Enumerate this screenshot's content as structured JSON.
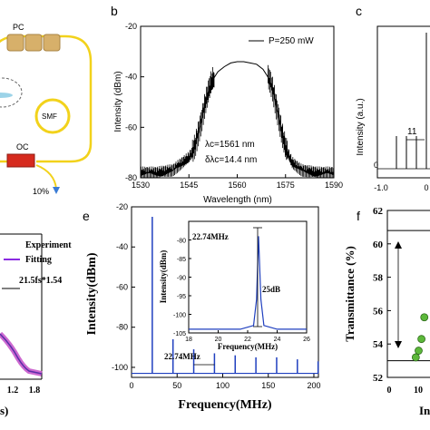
{
  "panels": {
    "a": {
      "labels": {
        "pc": "PC",
        "smf": "SMF",
        "oc": "OC",
        "out_ratio": "10%"
      }
    },
    "b": {
      "label": "b",
      "legend": "P=250 mW",
      "annotation_1": "λc=1561 nm",
      "annotation_2": "δλc=14.4  nm"
    },
    "c": {
      "label": "c",
      "annotation": "11",
      "ylabel": "Intensity (a.u.)",
      "x_ticks": [
        "-1.0",
        "0"
      ]
    },
    "d": {
      "legend_experiment": "Experiment",
      "legend_fitting": "Fitting",
      "annotation": "21.5fs*1.54",
      "x_ticks": [
        "1.2",
        "1.8"
      ],
      "xlabel_fragment": "s)"
    },
    "e": {
      "label": "e",
      "annotation": "22.74MHz",
      "inset": {
        "annotation_freq": "22.74MHz",
        "annotation_db": "25dB"
      }
    },
    "f": {
      "label": "f",
      "ylabel": "Transmittance (%)",
      "xlabel_fragment": "In",
      "y_ticks": [
        "52",
        "54",
        "56",
        "58",
        "60",
        "62"
      ],
      "x_ticks": [
        "0",
        "10"
      ]
    }
  },
  "chart_data": [
    {
      "type": "line",
      "panel": "b",
      "title": "",
      "xlabel": "Wavelength (nm)",
      "ylabel": "Intensity (dBm)",
      "xlim": [
        1530,
        1590
      ],
      "ylim": [
        -80,
        -20
      ],
      "x_ticks": [
        1530,
        1545,
        1560,
        1575,
        1590
      ],
      "y_ticks": [
        -80,
        -60,
        -40,
        -20
      ],
      "series": [
        {
          "name": "P=250 mW",
          "x": [
            1530,
            1535,
            1540,
            1543,
            1545,
            1546,
            1547,
            1548,
            1549,
            1550,
            1551,
            1552,
            1554,
            1556,
            1558,
            1560,
            1562,
            1564,
            1566,
            1568,
            1570,
            1571,
            1572,
            1573,
            1574,
            1575,
            1576,
            1577,
            1580,
            1585,
            1590
          ],
          "y": [
            -78,
            -78,
            -77,
            -74,
            -72,
            -70,
            -67,
            -62,
            -57,
            -51,
            -46,
            -42,
            -38,
            -36,
            -34.5,
            -34,
            -34,
            -34.5,
            -35,
            -37,
            -41,
            -45,
            -51,
            -57,
            -63,
            -68,
            -71,
            -74,
            -77,
            -78,
            -78
          ]
        }
      ]
    },
    {
      "type": "bar",
      "panel": "e",
      "title": "",
      "xlabel": "Frequency(MHz)",
      "ylabel": "Intensity(dBm)",
      "xlim": [
        0,
        205
      ],
      "ylim": [
        -105,
        -20
      ],
      "x_ticks": [
        0,
        50,
        100,
        150,
        200
      ],
      "y_ticks": [
        -100,
        -80,
        -60,
        -40,
        -20
      ],
      "noise_floor": -103,
      "peaks_x": [
        22.74,
        45.48,
        68.22,
        90.96,
        113.7,
        136.44,
        159.18,
        181.92,
        204.66
      ],
      "peaks_y": [
        -25,
        -86,
        -91,
        -93,
        -94,
        -95,
        -95,
        -96,
        -97
      ]
    },
    {
      "type": "line",
      "panel": "e-inset",
      "title": "",
      "xlabel": "Frequency(MHz)",
      "ylabel": "Intensity(dBm)",
      "xlim": [
        18,
        26
      ],
      "ylim": [
        -105,
        -75
      ],
      "x_ticks": [
        18,
        20,
        22,
        24,
        26
      ],
      "y_ticks": [
        -80,
        -85,
        -90,
        -95,
        -100,
        -105
      ],
      "x": [
        18,
        21.5,
        22.4,
        22.6,
        22.74,
        22.9,
        23.1,
        24,
        26
      ],
      "y": [
        -104,
        -104,
        -103,
        -96,
        -79,
        -96,
        -103,
        -104,
        -104
      ]
    },
    {
      "type": "scatter",
      "panel": "f",
      "title": "",
      "ylabel": "Transmittance (%)",
      "ylim": [
        52,
        62
      ],
      "reference_lines": [
        60.8,
        53.0
      ],
      "x": [
        10,
        11,
        12,
        13
      ],
      "y": [
        53.2,
        53.6,
        54.3,
        55.6
      ]
    }
  ]
}
